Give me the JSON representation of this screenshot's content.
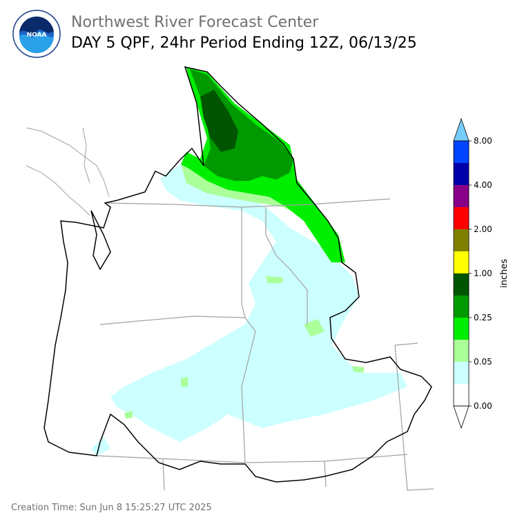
{
  "header": {
    "org_title": "Northwest River Forecast Center",
    "product_title": "DAY 5 QPF, 24hr Period Ending 12Z, 06/13/25",
    "logo_text": "NOAA"
  },
  "legend": {
    "unit": "inches",
    "tick_labels": [
      "0.00",
      "0.05",
      "0.25",
      "1.00",
      "2.00",
      "4.00",
      "8.00"
    ],
    "colors": [
      "#ffffff",
      "#ccffff",
      "#aaff99",
      "#00ee00",
      "#009900",
      "#005500",
      "#ffff00",
      "#808000",
      "#ff0000",
      "#880088",
      "#0000aa",
      "#0044ff",
      "#77ccff"
    ]
  },
  "footer": {
    "creation_time": "Creation Time: Sun Jun 8 15:25:27 UTC 2025"
  }
}
